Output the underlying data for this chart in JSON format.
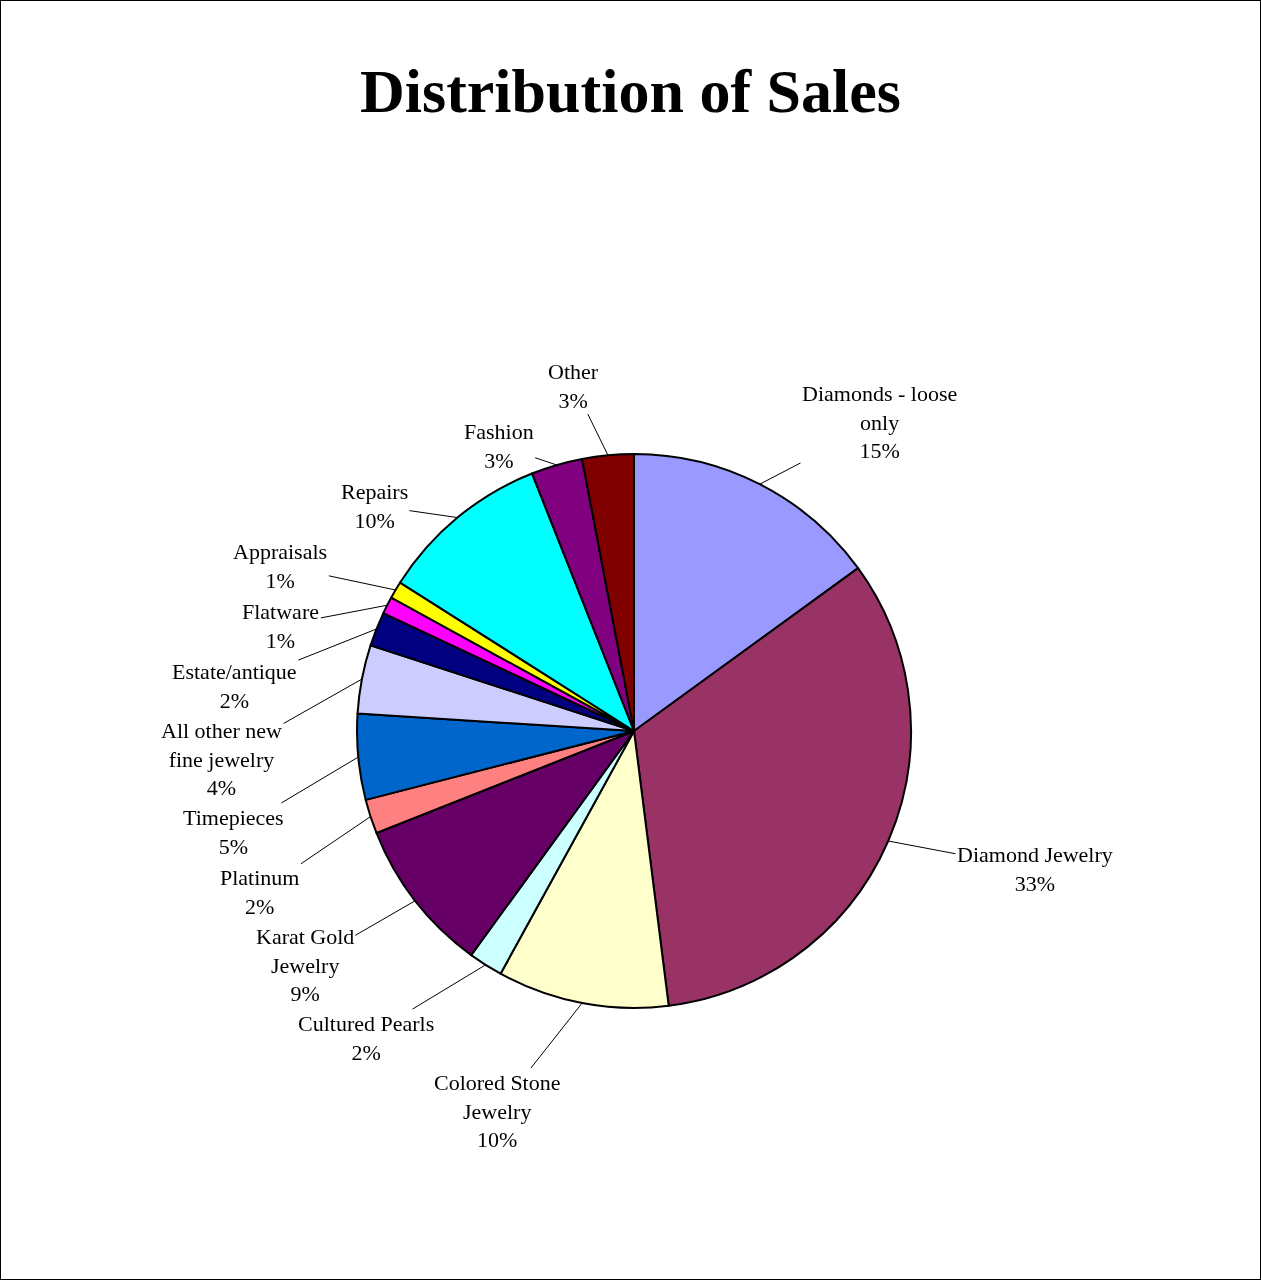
{
  "chart_data": {
    "type": "pie",
    "title": "Distribution of Sales",
    "categories": [
      "Diamonds - loose only",
      "Diamond Jewelry",
      "Colored Stone Jewelry",
      "Cultured Pearls",
      "Karat Gold Jewelry",
      "Platinum",
      "Timepieces",
      "All other new fine jewelry",
      "Estate/antique",
      "Flatware",
      "Appraisals",
      "Repairs",
      "Fashion",
      "Other"
    ],
    "values": [
      15,
      33,
      10,
      2,
      9,
      2,
      5,
      4,
      2,
      1,
      1,
      10,
      3,
      3
    ],
    "value_labels": [
      "15%",
      "33%",
      "10%",
      "2%",
      "9%",
      "2%",
      "5%",
      "4%",
      "2%",
      "1%",
      "1%",
      "10%",
      "3%",
      "3%"
    ],
    "colors": [
      "#9999ff",
      "#993366",
      "#ffffcc",
      "#ccffff",
      "#660066",
      "#ff8080",
      "#0066cc",
      "#ccccff",
      "#000080",
      "#ff00ff",
      "#ffff00",
      "#00ffff",
      "#800080",
      "#800000"
    ],
    "legend": false
  }
}
